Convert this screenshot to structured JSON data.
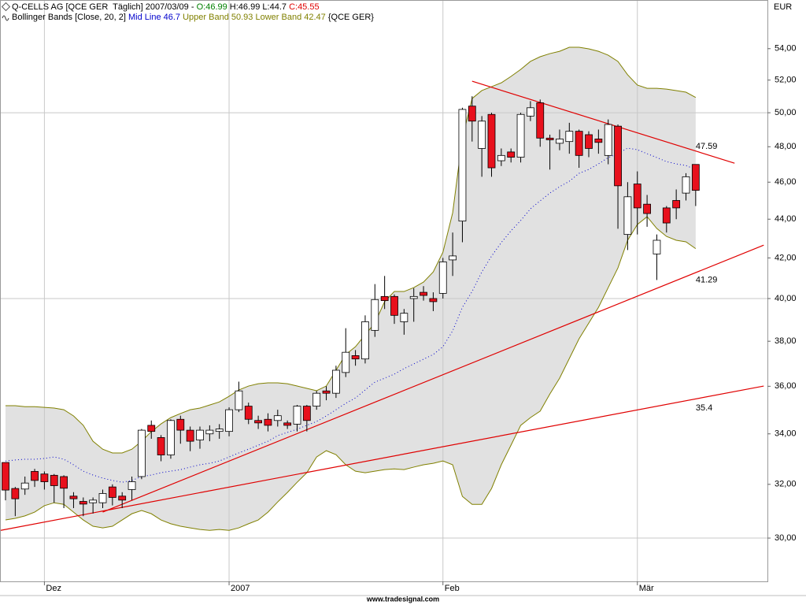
{
  "header": {
    "instrument": "Q-CELLS AG [QCE GER  Täglich] 2007/03/09 -",
    "open_label": "O:",
    "high_label": "H:",
    "low_label": "L:",
    "close_label": "C:",
    "open_color": "#008000",
    "close_color": "#e00000",
    "indicator": "Bollinger Bands [Close, 20, 2]",
    "symbol": "{QCE GER}"
  },
  "footer": "www.tradesignal.com",
  "chart_data": {
    "type": "candlestick",
    "y_label": "EUR",
    "yscale": "log",
    "ylim": [
      28.48,
      57.25
    ],
    "yticks": [
      {
        "value": 30,
        "label": "30,00"
      },
      {
        "value": 32,
        "label": "32,00"
      },
      {
        "value": 34,
        "label": "34,00"
      },
      {
        "value": 36,
        "label": "36,00"
      },
      {
        "value": 38,
        "label": "38,00"
      },
      {
        "value": 40,
        "label": "40,00"
      },
      {
        "value": 42,
        "label": "42,00"
      },
      {
        "value": 44,
        "label": "44,00"
      },
      {
        "value": 46,
        "label": "46,00"
      },
      {
        "value": 48,
        "label": "48,00"
      },
      {
        "value": 50,
        "label": "50,00"
      },
      {
        "value": 52,
        "label": "52,00"
      },
      {
        "value": 54,
        "label": "54,00"
      }
    ],
    "ygrid": [
      30,
      40,
      50
    ],
    "categories": [
      null,
      null,
      null,
      null,
      "Dez",
      null,
      null,
      null,
      null,
      null,
      null,
      null,
      null,
      null,
      null,
      null,
      null,
      null,
      null,
      null,
      null,
      null,
      null,
      "2007",
      null,
      null,
      null,
      null,
      null,
      null,
      null,
      null,
      null,
      null,
      null,
      null,
      null,
      null,
      null,
      null,
      null,
      null,
      null,
      null,
      null,
      "Feb",
      null,
      null,
      null,
      null,
      null,
      null,
      null,
      null,
      null,
      null,
      null,
      null,
      null,
      null,
      null,
      null,
      null,
      null,
      null,
      "Mär",
      null,
      null,
      null,
      null,
      null,
      null
    ],
    "up_color": "#ffffff",
    "down_color": "#e8101c",
    "open": [
      32.85,
      31.84,
      31.82,
      32.5,
      32.4,
      32.35,
      32.3,
      31.55,
      31.35,
      31.3,
      31.3,
      31.9,
      31.55,
      31.8,
      32.3,
      34.35,
      33.85,
      33.15,
      34.6,
      34.15,
      33.75,
      34.0,
      34.1,
      34.1,
      35.0,
      35.15,
      34.55,
      34.6,
      34.55,
      34.45,
      34.4,
      35.15,
      35.15,
      35.8,
      35.7,
      36.6,
      37.35,
      37.2,
      38.5,
      40.1,
      40.1,
      38.9,
      40.0,
      40.3,
      40.0,
      40.25,
      41.9,
      43.9,
      50.4,
      47.9,
      49.9,
      47.2,
      47.7,
      47.4,
      49.8,
      50.6,
      48.5,
      48.2,
      48.3,
      48.9,
      48.7,
      48.45,
      47.5,
      49.2,
      43.2,
      45.9,
      44.8,
      42.2,
      44.6,
      45.0,
      45.4,
      46.99
    ],
    "high": [
      32.85,
      31.9,
      32.3,
      32.6,
      32.5,
      32.4,
      32.35,
      31.7,
      31.5,
      31.5,
      31.8,
      32.0,
      31.7,
      32.3,
      34.2,
      34.55,
      33.95,
      34.6,
      34.75,
      34.3,
      34.3,
      34.35,
      34.4,
      35.1,
      36.2,
      35.3,
      34.75,
      34.85,
      35.0,
      34.55,
      35.2,
      35.2,
      35.8,
      36.0,
      36.9,
      38.6,
      37.6,
      39.2,
      40.7,
      41.1,
      40.2,
      39.5,
      40.5,
      40.6,
      40.3,
      42.0,
      43.3,
      50.3,
      51.0,
      49.8,
      50.0,
      47.9,
      47.9,
      50.0,
      50.7,
      50.8,
      48.7,
      49.0,
      49.4,
      49.0,
      48.9,
      49.0,
      49.6,
      49.3,
      46.0,
      46.6,
      45.3,
      43.2,
      44.7,
      45.6,
      46.5,
      46.99
    ],
    "low": [
      31.39,
      30.8,
      31.6,
      31.9,
      31.8,
      31.3,
      31.1,
      31.1,
      30.8,
      30.9,
      31.1,
      31.2,
      31.1,
      31.4,
      32.2,
      33.8,
      32.9,
      33.0,
      33.6,
      33.3,
      33.4,
      33.7,
      33.8,
      33.9,
      34.9,
      34.4,
      34.2,
      34.1,
      34.3,
      34.2,
      34.1,
      34.1,
      35.0,
      35.4,
      35.5,
      36.4,
      36.9,
      37.0,
      38.2,
      39.5,
      38.8,
      38.3,
      38.9,
      39.9,
      39.4,
      40.0,
      41.1,
      42.8,
      48.3,
      46.3,
      46.3,
      46.9,
      47.1,
      47.1,
      49.5,
      48.0,
      46.7,
      47.8,
      47.6,
      46.8,
      47.4,
      47.6,
      47.0,
      43.5,
      42.4,
      43.2,
      43.6,
      40.9,
      43.3,
      44.0,
      45.0,
      44.7
    ],
    "close": [
      31.78,
      31.45,
      32.05,
      32.15,
      32.1,
      31.95,
      31.85,
      31.45,
      31.25,
      31.4,
      31.65,
      31.5,
      31.4,
      32.1,
      34.15,
      34.1,
      33.15,
      34.55,
      34.15,
      33.7,
      34.15,
      34.15,
      34.2,
      35.0,
      35.8,
      34.6,
      34.45,
      34.35,
      34.75,
      34.35,
      35.15,
      34.55,
      35.7,
      35.7,
      36.7,
      37.5,
      37.2,
      38.9,
      39.95,
      39.9,
      39.2,
      39.3,
      40.1,
      40.15,
      39.85,
      41.8,
      42.1,
      50.2,
      49.5,
      49.5,
      46.8,
      47.5,
      47.4,
      49.9,
      50.3,
      48.5,
      48.4,
      48.45,
      48.9,
      47.5,
      47.9,
      48.25,
      49.3,
      45.8,
      45.2,
      44.6,
      44.3,
      42.9,
      43.8,
      44.6,
      46.3,
      45.55
    ],
    "band_fill": "#e1e1e1",
    "bands": [
      {
        "name": "Mid Line",
        "color": "#0000cc",
        "dashed": true,
        "values": [
          32.91,
          32.95,
          32.98,
          32.98,
          33.01,
          33.07,
          32.98,
          32.76,
          32.51,
          32.36,
          32.24,
          32.15,
          32.08,
          32.15,
          32.3,
          32.36,
          32.45,
          32.51,
          32.57,
          32.67,
          32.76,
          32.82,
          32.91,
          33.07,
          33.23,
          33.38,
          33.54,
          33.7,
          33.93,
          34.06,
          34.19,
          34.35,
          34.51,
          34.74,
          35.0,
          35.27,
          35.5,
          35.84,
          36.18,
          36.35,
          36.53,
          36.77,
          36.98,
          37.19,
          37.4,
          37.75,
          38.48,
          39.58,
          40.34,
          41.3,
          42.09,
          42.78,
          43.39,
          43.93,
          44.55,
          44.98,
          45.4,
          45.75,
          46.05,
          46.49,
          46.71,
          47.02,
          47.38,
          47.6,
          47.92,
          47.83,
          47.6,
          47.38,
          47.15,
          47.02,
          46.93,
          46.7
        ]
      },
      {
        "name": "Upper Band",
        "color": "#808000",
        "dashed": false,
        "values": [
          35.17,
          35.17,
          35.13,
          35.13,
          35.1,
          35.07,
          35.0,
          34.74,
          34.35,
          33.7,
          33.38,
          33.23,
          33.23,
          33.38,
          33.7,
          34.09,
          34.41,
          34.67,
          34.84,
          35.0,
          35.07,
          35.2,
          35.33,
          35.57,
          35.84,
          36.01,
          36.11,
          36.15,
          36.15,
          36.11,
          36.01,
          35.91,
          35.81,
          36.01,
          36.7,
          37.4,
          37.75,
          38.3,
          38.84,
          39.85,
          40.34,
          40.34,
          40.53,
          40.8,
          41.3,
          42.29,
          44.34,
          48.51,
          50.86,
          51.35,
          51.59,
          51.83,
          52.23,
          52.67,
          53.18,
          53.48,
          53.68,
          53.83,
          54.09,
          54.09,
          53.99,
          53.83,
          53.58,
          53.18,
          52.33,
          51.69,
          51.49,
          51.49,
          51.44,
          51.35,
          51.25,
          50.93
        ]
      },
      {
        "name": "Lower Band",
        "color": "#808000",
        "dashed": false,
        "values": [
          30.66,
          30.72,
          30.81,
          30.95,
          31.19,
          31.3,
          31.24,
          30.95,
          30.66,
          30.43,
          30.37,
          30.43,
          30.66,
          30.89,
          31.01,
          30.89,
          30.66,
          30.52,
          30.43,
          30.37,
          30.31,
          30.28,
          30.31,
          30.28,
          30.37,
          30.52,
          30.66,
          30.95,
          31.33,
          31.69,
          32.08,
          32.45,
          33.07,
          33.32,
          33.16,
          32.76,
          32.51,
          32.45,
          32.51,
          32.57,
          32.6,
          32.57,
          32.67,
          32.76,
          32.82,
          32.91,
          32.76,
          31.54,
          31.24,
          31.24,
          31.84,
          32.76,
          33.54,
          34.35,
          34.67,
          34.94,
          35.67,
          36.35,
          37.22,
          38.11,
          38.84,
          39.58,
          40.53,
          41.5,
          42.9,
          43.72,
          44.13,
          43.51,
          43.1,
          42.9,
          42.82,
          42.47
        ]
      }
    ],
    "trend_color": "#e00000",
    "trendlines": [
      {
        "x": [
          48,
          75
        ],
        "values": [
          51.93,
          47.06
        ],
        "value": 47.59
      },
      {
        "x": [
          10,
          78
        ],
        "values": [
          30.95,
          42.65
        ],
        "value": 41.29
      },
      {
        "x": [
          -0.5,
          78
        ],
        "values": [
          30.28,
          36.01
        ],
        "value": 35.4
      }
    ]
  }
}
